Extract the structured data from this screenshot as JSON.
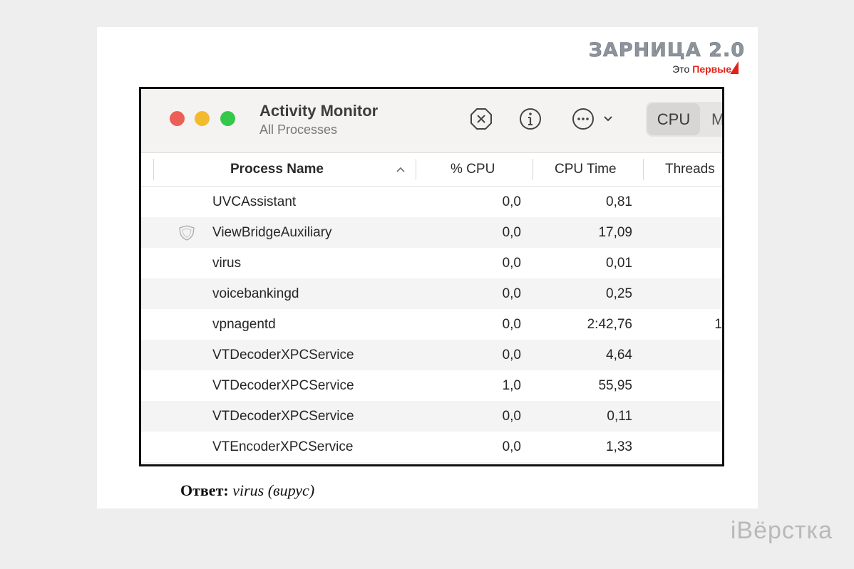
{
  "brand": {
    "title": "ЗАРНИЦА 2.0",
    "sub_prefix": "Это",
    "sub_red": "Первые",
    "accent": "#e2231a"
  },
  "window": {
    "title": "Activity Monitor",
    "subtitle": "All Processes",
    "toolbar_icons": [
      "stop-process-icon",
      "info-icon",
      "more-icon",
      "chevron-down-icon"
    ],
    "tabs": [
      "CPU",
      "M"
    ],
    "selected_tab": "CPU"
  },
  "table": {
    "columns": [
      "Process Name",
      "% CPU",
      "CPU Time",
      "Threads"
    ],
    "rows": [
      {
        "name": "UVCAssistant",
        "cpu": "0,0",
        "time": "0,81",
        "threads": ""
      },
      {
        "name": "ViewBridgeAuxiliary",
        "cpu": "0,0",
        "time": "17,09",
        "threads": "",
        "icon": "shield-icon"
      },
      {
        "name": "virus",
        "cpu": "0,0",
        "time": "0,01",
        "threads": ""
      },
      {
        "name": "voicebankingd",
        "cpu": "0,0",
        "time": "0,25",
        "threads": ""
      },
      {
        "name": "vpnagentd",
        "cpu": "0,0",
        "time": "2:42,76",
        "threads": "1"
      },
      {
        "name": "VTDecoderXPCService",
        "cpu": "0,0",
        "time": "4,64",
        "threads": ""
      },
      {
        "name": "VTDecoderXPCService",
        "cpu": "1,0",
        "time": "55,95",
        "threads": ""
      },
      {
        "name": "VTDecoderXPCService",
        "cpu": "0,0",
        "time": "0,11",
        "threads": ""
      },
      {
        "name": "VTEncoderXPCService",
        "cpu": "0,0",
        "time": "1,33",
        "threads": ""
      }
    ]
  },
  "answer": {
    "label": "Ответ:",
    "text": "virus (вирус)"
  },
  "watermark": "іВёрстка"
}
